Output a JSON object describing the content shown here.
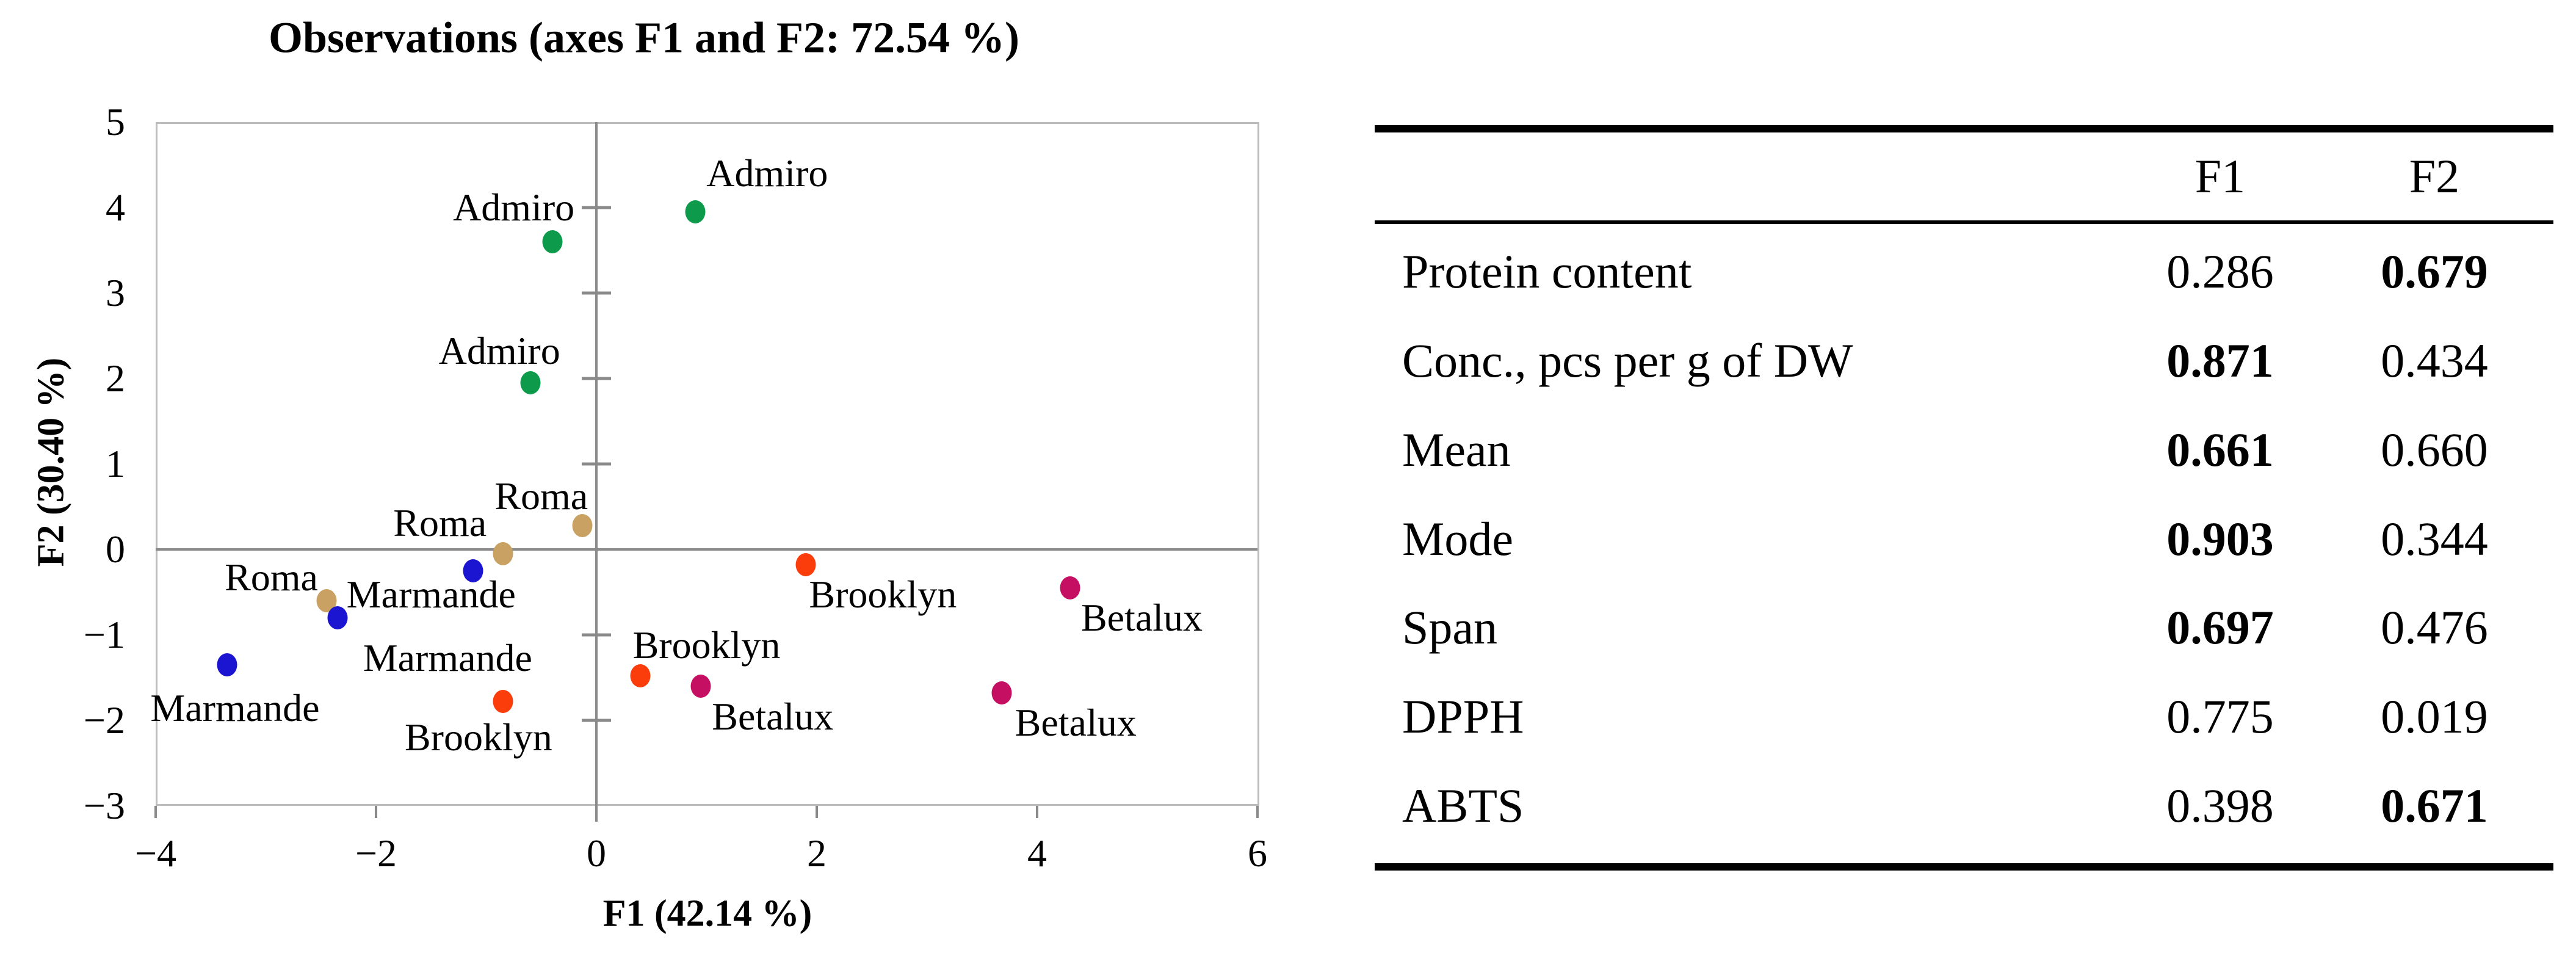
{
  "figure": {
    "background": "#ffffff",
    "text_color": "#000000"
  },
  "chart_data": {
    "type": "scatter",
    "title": "Observations (axes F1 and F2: 72.54 %)",
    "xlabel": "F1 (42.14 %)",
    "ylabel": "F2 (30.40 %)",
    "xlim": [
      -4,
      6
    ],
    "ylim": [
      -3,
      5
    ],
    "xticks": [
      -4,
      -2,
      0,
      2,
      4,
      6
    ],
    "yticks": [
      5,
      4,
      3,
      2,
      1,
      0,
      -1,
      -2,
      -3
    ],
    "grid": false,
    "legend": "none (points labeled directly)",
    "axis_color": "#8a8a8a",
    "frame_color": "#bcbcbc",
    "series": [
      {
        "name": "Admiro",
        "color": "#0d9b4b",
        "points": [
          {
            "x": -0.4,
            "y": 3.6,
            "label": "Admiro",
            "lx": -0.75,
            "ly": 4.0
          },
          {
            "x": 0.9,
            "y": 3.95,
            "label": "Admiro",
            "lx": 1.55,
            "ly": 4.4
          },
          {
            "x": -0.6,
            "y": 1.95,
            "label": "Admiro",
            "lx": -0.88,
            "ly": 2.32
          }
        ]
      },
      {
        "name": "Roma",
        "color": "#c9a263",
        "points": [
          {
            "x": -0.13,
            "y": 0.28,
            "label": "Roma",
            "lx": -0.5,
            "ly": 0.62
          },
          {
            "x": -0.85,
            "y": -0.05,
            "label": "Roma",
            "lx": -1.42,
            "ly": 0.31
          },
          {
            "x": -2.45,
            "y": -0.6,
            "label": "Roma",
            "lx": -2.95,
            "ly": -0.33
          }
        ]
      },
      {
        "name": "Marmande",
        "color": "#1b14d0",
        "points": [
          {
            "x": -1.12,
            "y": -0.25,
            "label": "Marmande",
            "lx": -1.5,
            "ly": -0.53
          },
          {
            "x": -2.35,
            "y": -0.8,
            "label": "Marmande",
            "lx": -1.35,
            "ly": -1.27
          },
          {
            "x": -3.35,
            "y": -1.35,
            "label": "Marmande",
            "lx": -3.28,
            "ly": -1.86
          }
        ]
      },
      {
        "name": "Brooklyn",
        "color": "#fb3d0c",
        "points": [
          {
            "x": 1.9,
            "y": -0.18,
            "label": "Brooklyn",
            "lx": 2.6,
            "ly": -0.53
          },
          {
            "x": 0.4,
            "y": -1.48,
            "label": "Brooklyn",
            "lx": 1.0,
            "ly": -1.12
          },
          {
            "x": -0.85,
            "y": -1.78,
            "label": "Brooklyn",
            "lx": -1.07,
            "ly": -2.2
          }
        ]
      },
      {
        "name": "Betalux",
        "color": "#c50f63",
        "points": [
          {
            "x": 4.3,
            "y": -0.45,
            "label": "Betalux",
            "lx": 4.95,
            "ly": -0.8
          },
          {
            "x": 0.95,
            "y": -1.6,
            "label": "Betalux",
            "lx": 1.6,
            "ly": -1.96
          },
          {
            "x": 3.68,
            "y": -1.68,
            "label": "Betalux",
            "lx": 4.35,
            "ly": -2.03
          }
        ]
      }
    ]
  },
  "loadings_table": {
    "headers": [
      "F1",
      "F2"
    ],
    "rows": [
      {
        "label": "Protein content",
        "f1": "0.286",
        "f2": "0.679",
        "f1_bold": false,
        "f2_bold": true
      },
      {
        "label": "Conc., pcs per g of DW",
        "f1": "0.871",
        "f2": "0.434",
        "f1_bold": true,
        "f2_bold": false
      },
      {
        "label": "Mean",
        "f1": "0.661",
        "f2": "0.660",
        "f1_bold": true,
        "f2_bold": false
      },
      {
        "label": "Mode",
        "f1": "0.903",
        "f2": "0.344",
        "f1_bold": true,
        "f2_bold": false
      },
      {
        "label": "Span",
        "f1": "0.697",
        "f2": "0.476",
        "f1_bold": true,
        "f2_bold": false
      },
      {
        "label": "DPPH",
        "f1": "0.775",
        "f2": "0.019",
        "f1_bold": false,
        "f2_bold": false
      },
      {
        "label": "ABTS",
        "f1": "0.398",
        "f2": "0.671",
        "f1_bold": false,
        "f2_bold": true
      }
    ]
  }
}
